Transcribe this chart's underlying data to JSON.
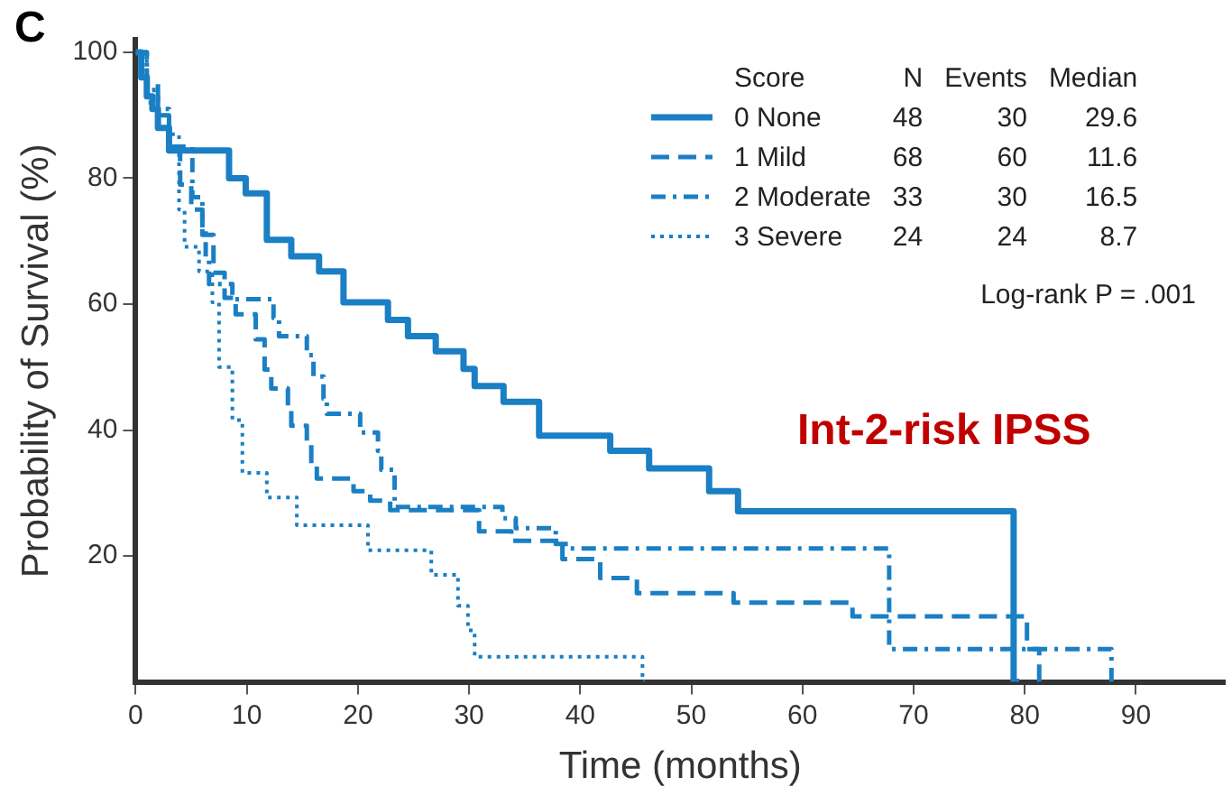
{
  "chart_data": {
    "type": "step",
    "xlabel": "Time (months)",
    "ylabel": "Probability of Survival (%)",
    "legend_title": "Score",
    "xlim": [
      0,
      98
    ],
    "xticks": [
      0,
      10,
      20,
      30,
      40,
      50,
      60,
      70,
      80,
      90
    ],
    "ylim": [
      0,
      102
    ],
    "yticks": [
      20,
      40,
      60,
      80,
      100
    ],
    "grid": false,
    "legend": "top right",
    "annotations": [
      "C",
      "N",
      "Events",
      "Median",
      "48",
      "30",
      "29.6",
      "68",
      "60",
      "11.6",
      "33",
      "30",
      "16.5",
      "24",
      "24",
      "8.7",
      "Log-rank P = .001",
      "Int-2-risk IPSS"
    ],
    "series": [
      {
        "name": "0 None",
        "color": "#1a7fc4",
        "line_style": "solid",
        "x": [
          0,
          0.5,
          1,
          1.5,
          2,
          3,
          8.4,
          9.9,
          11.8,
          14,
          16.5,
          18.7,
          22.7,
          24.5,
          27,
          29.5,
          30.5,
          33.1,
          36.3,
          42.7,
          46.2,
          51.6,
          54.2,
          79,
          79.5
        ],
        "values": [
          100,
          96,
          93,
          91,
          88,
          84.4,
          80,
          77.6,
          70.2,
          67.6,
          65.2,
          60.3,
          57.5,
          54.9,
          52.5,
          49.7,
          47,
          44.5,
          39.1,
          36.7,
          33.9,
          30.3,
          27.1,
          0,
          0
        ]
      },
      {
        "name": "1 Mild",
        "color": "#1a7fc4",
        "line_style": "dashed",
        "x": [
          0,
          1,
          2,
          3,
          4,
          5,
          6,
          7,
          8,
          9,
          10.8,
          11.6,
          12.2,
          13.7,
          14,
          15.4,
          15.8,
          16.3,
          19.6,
          21.1,
          22.9,
          30.9,
          33.8,
          38.4,
          41.8,
          45.1,
          53.8,
          64.5,
          80.2,
          81.3,
          81.6
        ],
        "values": [
          100,
          95,
          90,
          85,
          79,
          75,
          71,
          65,
          61,
          58.4,
          54.4,
          49.6,
          46.6,
          43.6,
          40.7,
          38.1,
          34.7,
          32.3,
          30.3,
          28.8,
          27.3,
          23.9,
          22.4,
          19.5,
          16.5,
          14.1,
          12.6,
          10.4,
          5.2,
          0,
          0
        ]
      },
      {
        "name": "2 Moderate",
        "color": "#1a7fc4",
        "line_style": "dashdot",
        "x": [
          0,
          1,
          2,
          3,
          5.1,
          6,
          6.3,
          6.6,
          8.7,
          12.4,
          12.9,
          15.4,
          16,
          16.9,
          17.2,
          20.2,
          21.8,
          22.1,
          23.3,
          33,
          34.2,
          37.8,
          39,
          67.8,
          87.8,
          88
        ],
        "values": [
          100,
          94,
          91,
          85,
          77,
          72,
          67.3,
          63.2,
          60.8,
          57.8,
          54.9,
          51.9,
          48.5,
          45,
          42.6,
          39.6,
          36.7,
          33.7,
          27.8,
          26,
          24.4,
          21.9,
          21.2,
          5.2,
          0,
          0
        ]
      },
      {
        "name": "3 Severe",
        "color": "#1a7fc4",
        "line_style": "dotted",
        "x": [
          0,
          1,
          2,
          3,
          3.9,
          4.4,
          5.7,
          6.9,
          7.5,
          8.7,
          9.6,
          11.8,
          14.5,
          20.9,
          26.6,
          29,
          29.9,
          30.5,
          45.6,
          45.8
        ],
        "values": [
          100,
          92,
          90,
          87,
          75,
          69.1,
          65.2,
          60.3,
          50,
          41.6,
          33.2,
          29.3,
          24.9,
          20.9,
          17,
          12.1,
          8.2,
          4,
          0,
          0
        ]
      }
    ]
  }
}
